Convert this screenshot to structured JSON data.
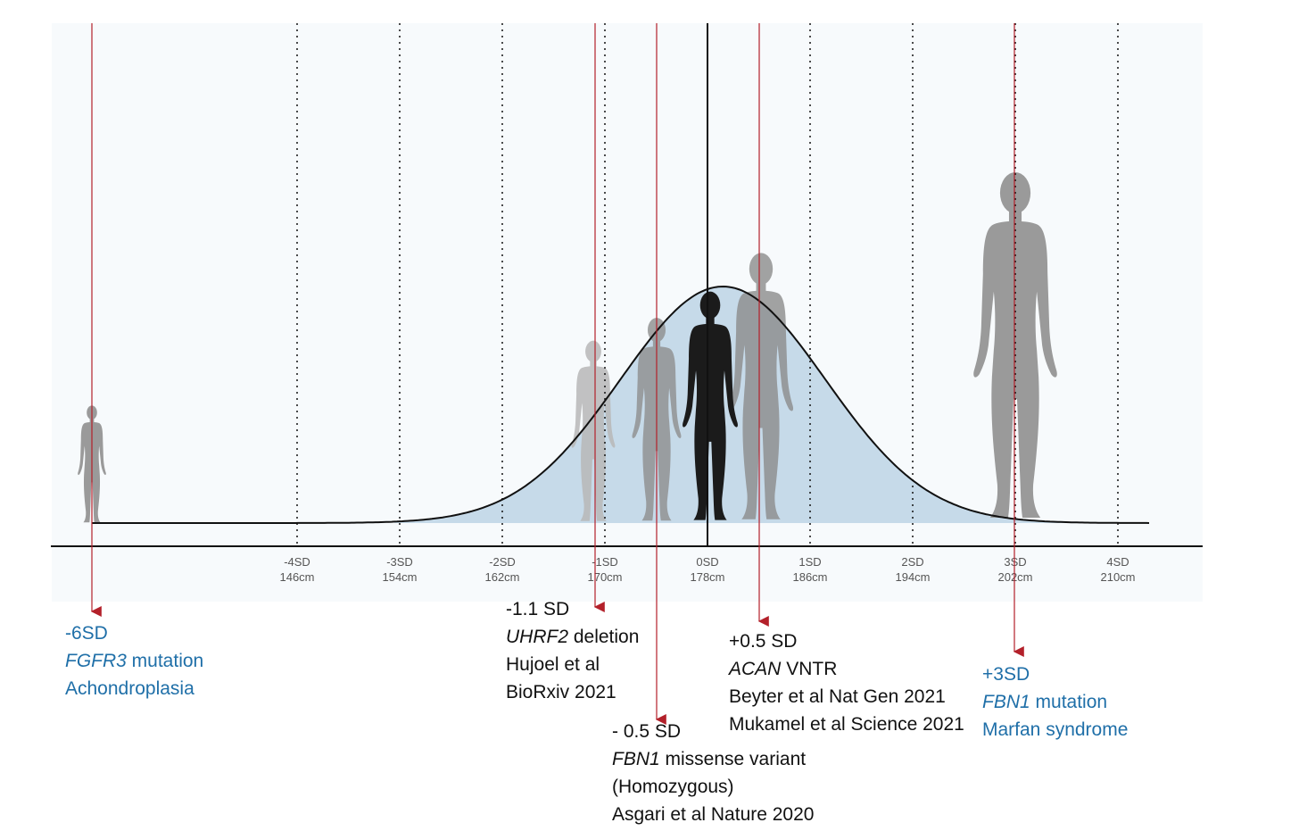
{
  "colors": {
    "curve_fill": "#c6dae9",
    "curve_stroke": "#111111",
    "marker_line": "#b3202a",
    "annotation_blue": "#1f6fa8",
    "silhouette_grey": "#9a9a9a",
    "silhouette_black": "#1b1b1b",
    "panel_bg": "#f7fafc"
  },
  "axis": {
    "ticks": [
      {
        "sd": "-4SD",
        "cm": "146cm"
      },
      {
        "sd": "-3SD",
        "cm": "154cm"
      },
      {
        "sd": "-2SD",
        "cm": "162cm"
      },
      {
        "sd": "-1SD",
        "cm": "170cm"
      },
      {
        "sd": "0SD",
        "cm": "178cm"
      },
      {
        "sd": "1SD",
        "cm": "186cm"
      },
      {
        "sd": "2SD",
        "cm": "194cm"
      },
      {
        "sd": "3SD",
        "cm": "202cm"
      },
      {
        "sd": "4SD",
        "cm": "210cm"
      }
    ]
  },
  "annotations": {
    "achondroplasia": {
      "sd": "-6SD",
      "gene": "FGFR3",
      "gene_suffix": " mutation",
      "condition": "Achondroplasia"
    },
    "uhrf2": {
      "sd": "-1.1 SD",
      "gene": "UHRF2",
      "gene_suffix": " deletion",
      "ref1": "Hujoel et al",
      "ref2": "BioRxiv 2021"
    },
    "fbn1_missense": {
      "sd": "- 0.5 SD",
      "gene": "FBN1",
      "gene_suffix": " missense variant",
      "note": "(Homozygous)",
      "ref1": "Asgari et al Nature 2020"
    },
    "acan": {
      "sd": "+0.5 SD",
      "gene": "ACAN",
      "gene_suffix": " VNTR",
      "ref1": "Beyter et al Nat Gen 2021",
      "ref2": "Mukamel et al Science 2021"
    },
    "marfan": {
      "sd": "+3SD",
      "gene": "FBN1",
      "gene_suffix": " mutation",
      "condition": "Marfan syndrome"
    }
  },
  "figures": [
    {
      "name": "figure-achondroplasia",
      "shade": "grey"
    },
    {
      "name": "figure-minus-1-1sd",
      "shade": "light"
    },
    {
      "name": "figure-minus-0-5sd",
      "shade": "grey"
    },
    {
      "name": "figure-plus-0-5sd",
      "shade": "grey"
    },
    {
      "name": "figure-mean",
      "shade": "black"
    },
    {
      "name": "figure-marfan",
      "shade": "grey"
    }
  ]
}
